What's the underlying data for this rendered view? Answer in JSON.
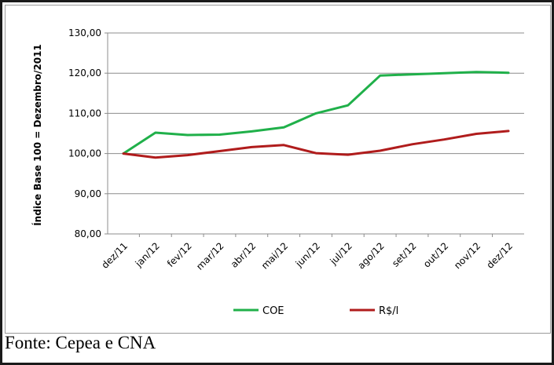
{
  "chart_data": {
    "type": "line",
    "ylabel": "Índice Base 100 = Dezembro/2011",
    "ylim": [
      80,
      130
    ],
    "yticks": [
      80,
      90,
      100,
      110,
      120,
      130
    ],
    "ytick_labels": [
      "80,00",
      "90,00",
      "100,00",
      "110,00",
      "120,00",
      "130,00"
    ],
    "categories": [
      "dez/11",
      "jan/12",
      "fev/12",
      "mar/12",
      "abr/12",
      "mai/12",
      "jun/12",
      "jul/12",
      "ago/12",
      "set/12",
      "out/12",
      "nov/12",
      "dez/12"
    ],
    "grid": true,
    "legend_position": "bottom",
    "series": [
      {
        "name": "COE",
        "color": "#20b04a",
        "values": [
          100.0,
          105.2,
          104.6,
          104.7,
          105.5,
          106.5,
          110.0,
          112.0,
          119.4,
          119.7,
          120.0,
          120.3,
          120.1
        ]
      },
      {
        "name": "R$/l",
        "color": "#b01c1c",
        "values": [
          100.0,
          99.0,
          99.6,
          100.6,
          101.6,
          102.1,
          100.1,
          99.7,
          100.7,
          102.3,
          103.5,
          104.9,
          105.6
        ]
      }
    ]
  },
  "caption": "Fonte: Cepea e CNA"
}
